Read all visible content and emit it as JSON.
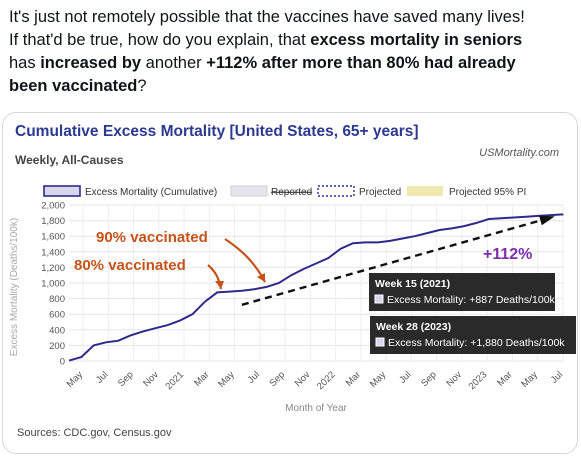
{
  "post": {
    "line1": "It's just not remotely possible that the vaccines have saved many lives!",
    "line2_a": "If that'd be true, how do you explain, that ",
    "line2_b": "excess mortality in seniors",
    "line3_a": "has ",
    "line3_b": "increased by",
    "line3_c": " another ",
    "line3_d": "+112% after more than 80% had already",
    "line4_a": "been vaccinated",
    "line4_b": "?"
  },
  "chart_data": {
    "type": "line",
    "title": "Cumulative Excess Mortality [United States, 65+ years]",
    "subtitle": "Weekly, All-Causes",
    "brand": "USMortality.com",
    "xlabel": "Month of Year",
    "ylabel": "Excess Mortality (Deaths/100k)",
    "ylim": [
      0,
      2000
    ],
    "yticks": [
      "0",
      "200",
      "400",
      "600",
      "800",
      "1,000",
      "1,200",
      "1,400",
      "1,600",
      "1,800",
      "2,000"
    ],
    "xticks": [
      "May",
      "Jul",
      "Sep",
      "Nov",
      "2021",
      "Mar",
      "May",
      "Jul",
      "Sep",
      "Nov",
      "2022",
      "Mar",
      "May",
      "Jul",
      "Sep",
      "Nov",
      "2023",
      "Mar",
      "May",
      "Jul"
    ],
    "legend": [
      {
        "name": "Excess Mortality (Cumulative)",
        "color": "#2e2a8a"
      },
      {
        "name": "Reported",
        "color": "#cfcfd6"
      },
      {
        "name": "Projected",
        "color": "#2e2a8a"
      },
      {
        "name": "Projected 95% PI",
        "color": "#efe8b0"
      }
    ],
    "series": [
      {
        "name": "Excess Mortality (Cumulative)",
        "x": [
          "2020-03",
          "2020-04",
          "2020-05",
          "2020-06",
          "2020-07",
          "2020-08",
          "2020-09",
          "2020-10",
          "2020-11",
          "2020-12",
          "2021-01",
          "2021-02",
          "2021-03",
          "2021-04",
          "2021-05",
          "2021-06",
          "2021-07",
          "2021-08",
          "2021-09",
          "2021-10",
          "2021-11",
          "2021-12",
          "2022-01",
          "2022-02",
          "2022-03",
          "2022-04",
          "2022-05",
          "2022-06",
          "2022-07",
          "2022-08",
          "2022-09",
          "2022-10",
          "2022-11",
          "2022-12",
          "2023-01",
          "2023-02",
          "2023-03",
          "2023-04",
          "2023-05",
          "2023-06",
          "2023-07"
        ],
        "values": [
          5,
          50,
          200,
          240,
          260,
          330,
          380,
          420,
          460,
          520,
          600,
          760,
          880,
          890,
          900,
          920,
          950,
          1000,
          1100,
          1180,
          1250,
          1320,
          1440,
          1510,
          1520,
          1520,
          1540,
          1570,
          1600,
          1640,
          1680,
          1700,
          1730,
          1770,
          1820,
          1830,
          1840,
          1850,
          1860,
          1870,
          1880
        ]
      }
    ],
    "trend": {
      "x": [
        "2021-05",
        "2023-07"
      ],
      "values": [
        720,
        1840
      ]
    },
    "annotations": {
      "vacc90": "90% vaccinated",
      "vacc80": "80% vaccinated",
      "increase": "+112%",
      "tooltip1_title": "Week 15 (2021)",
      "tooltip1_value": "Excess Mortality: +887 Deaths/100k",
      "tooltip2_title": "Week 28 (2023)",
      "tooltip2_value": "Excess Mortality: +1,880 Deaths/100k"
    },
    "source": "Sources: CDC.gov, Census.gov"
  }
}
